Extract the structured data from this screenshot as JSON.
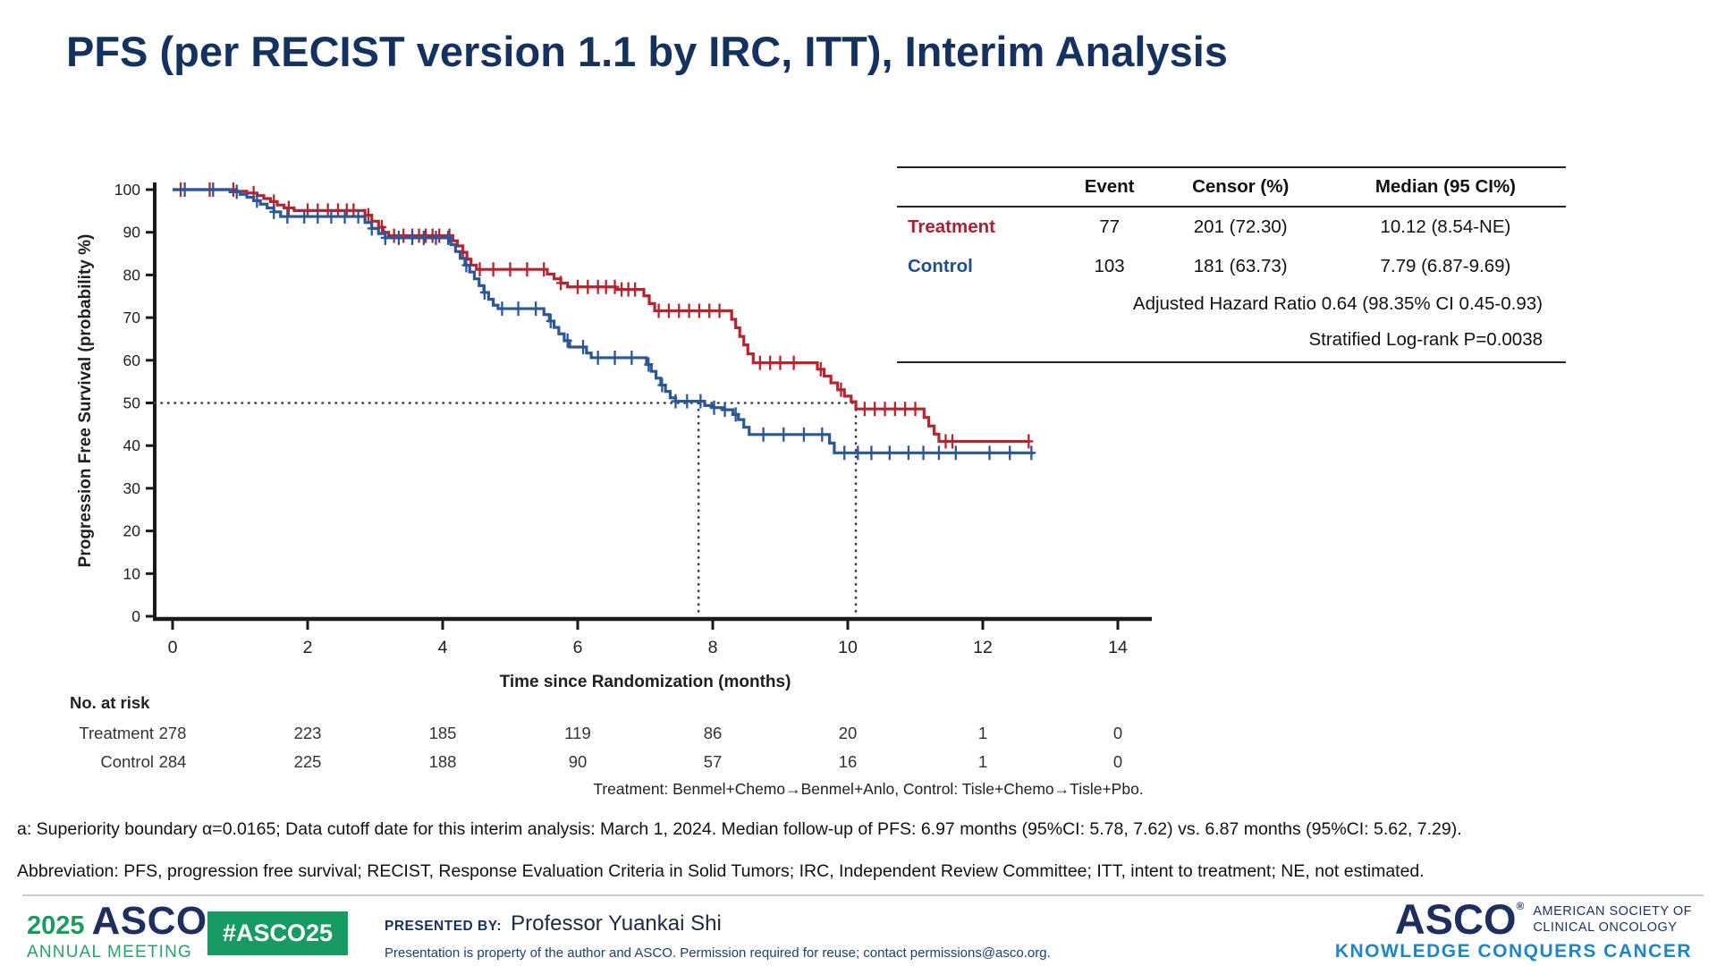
{
  "title": "PFS (per RECIST version 1.1 by IRC, ITT), Interim Analysis",
  "stats_table": {
    "columns": [
      "",
      "Event",
      "Censor (%)",
      "Median (95 CI%)"
    ],
    "rows": [
      {
        "label": "Treatment",
        "event": "77",
        "censor": "201 (72.30)",
        "median": "10.12 (8.54-NE)"
      },
      {
        "label": "Control",
        "event": "103",
        "censor": "181 (63.73)",
        "median": "7.79 (6.87-9.69)"
      }
    ],
    "hr_note": "Adjusted Hazard Ratio 0.64 (98.35% CI 0.45-0.93)",
    "logrank_note": "Stratified Log-rank P=0.0038"
  },
  "chart_data": {
    "type": "line",
    "subtype": "kaplan-meier-step",
    "xlabel": "Time since Randomization (months)",
    "ylabel": "Progression Free Survival (probability %)",
    "xlim": [
      0,
      14
    ],
    "ylim": [
      0,
      100
    ],
    "xticks": [
      0,
      2,
      4,
      6,
      8,
      10,
      12,
      14
    ],
    "yticks": [
      0,
      10,
      20,
      30,
      40,
      50,
      60,
      70,
      80,
      90,
      100
    ],
    "grid": false,
    "legend_position": "none",
    "reference_lines": {
      "horizontal_y": 50,
      "vertical_x": [
        7.79,
        10.12
      ]
    },
    "series": [
      {
        "name": "Treatment",
        "color": "#B5252F",
        "steps": [
          [
            0,
            100
          ],
          [
            0.85,
            100
          ],
          [
            0.95,
            99.6
          ],
          [
            1.1,
            99.2
          ],
          [
            1.25,
            98.6
          ],
          [
            1.35,
            97.9
          ],
          [
            1.45,
            97.2
          ],
          [
            1.55,
            96.4
          ],
          [
            1.65,
            95.7
          ],
          [
            1.8,
            95.1
          ],
          [
            2.75,
            95.1
          ],
          [
            2.85,
            94
          ],
          [
            2.95,
            92.6
          ],
          [
            3.05,
            91.2
          ],
          [
            3.12,
            90
          ],
          [
            3.2,
            89.2
          ],
          [
            4.05,
            89.2
          ],
          [
            4.15,
            88
          ],
          [
            4.22,
            86.8
          ],
          [
            4.3,
            85.3
          ],
          [
            4.36,
            83.7
          ],
          [
            4.42,
            82.3
          ],
          [
            4.5,
            81.3
          ],
          [
            5.45,
            81.3
          ],
          [
            5.55,
            80.2
          ],
          [
            5.65,
            79.1
          ],
          [
            5.75,
            78.1
          ],
          [
            5.85,
            77.2
          ],
          [
            6.5,
            77.2
          ],
          [
            6.56,
            76.6
          ],
          [
            6.9,
            76.6
          ],
          [
            6.98,
            75.1
          ],
          [
            7.06,
            73.3
          ],
          [
            7.14,
            71.6
          ],
          [
            8.2,
            71.6
          ],
          [
            8.28,
            69.6
          ],
          [
            8.34,
            67.6
          ],
          [
            8.4,
            65.6
          ],
          [
            8.46,
            63.6
          ],
          [
            8.52,
            61.5
          ],
          [
            8.6,
            59.4
          ],
          [
            9.45,
            59.4
          ],
          [
            9.55,
            57.9
          ],
          [
            9.65,
            56.3
          ],
          [
            9.75,
            54.7
          ],
          [
            9.85,
            53.1
          ],
          [
            9.95,
            51.6
          ],
          [
            10.05,
            50.3
          ],
          [
            10.12,
            48.6
          ],
          [
            11.05,
            48.6
          ],
          [
            11.13,
            46.6
          ],
          [
            11.2,
            44.6
          ],
          [
            11.28,
            42.7
          ],
          [
            11.35,
            41
          ],
          [
            12.7,
            41
          ]
        ],
        "censors": [
          0.12,
          0.55,
          0.9,
          1.2,
          1.5,
          1.72,
          2.0,
          2.15,
          2.3,
          2.45,
          2.58,
          2.68,
          2.9,
          3.1,
          3.28,
          3.42,
          3.55,
          3.65,
          3.75,
          3.85,
          3.95,
          4.1,
          4.3,
          4.55,
          4.75,
          5.0,
          5.25,
          5.5,
          5.75,
          6.0,
          6.15,
          6.3,
          6.42,
          6.55,
          6.65,
          6.75,
          6.85,
          7.2,
          7.35,
          7.5,
          7.65,
          7.8,
          7.95,
          8.1,
          8.7,
          8.85,
          9.0,
          9.2,
          9.6,
          9.9,
          10.25,
          10.4,
          10.55,
          10.7,
          10.85,
          11.0,
          11.45,
          11.55,
          12.68
        ]
      },
      {
        "name": "Control",
        "color": "#2B5796",
        "steps": [
          [
            0,
            100
          ],
          [
            0.7,
            100
          ],
          [
            0.85,
            99.5
          ],
          [
            1.0,
            98.9
          ],
          [
            1.1,
            98.2
          ],
          [
            1.2,
            97.4
          ],
          [
            1.3,
            96.6
          ],
          [
            1.4,
            95.7
          ],
          [
            1.5,
            94.8
          ],
          [
            1.6,
            93.7
          ],
          [
            2.75,
            93.7
          ],
          [
            2.85,
            92.3
          ],
          [
            2.95,
            90.9
          ],
          [
            3.05,
            89.7
          ],
          [
            3.15,
            88.7
          ],
          [
            4.05,
            88.7
          ],
          [
            4.12,
            87.1
          ],
          [
            4.19,
            85.5
          ],
          [
            4.26,
            83.9
          ],
          [
            4.33,
            82.3
          ],
          [
            4.4,
            80.7
          ],
          [
            4.47,
            79.1
          ],
          [
            4.54,
            77.5
          ],
          [
            4.61,
            75.9
          ],
          [
            4.68,
            74.3
          ],
          [
            4.75,
            72.9
          ],
          [
            4.82,
            72.1
          ],
          [
            5.42,
            72.1
          ],
          [
            5.5,
            70.7
          ],
          [
            5.58,
            69.2
          ],
          [
            5.65,
            67.7
          ],
          [
            5.72,
            66.2
          ],
          [
            5.8,
            64.6
          ],
          [
            5.88,
            63.1
          ],
          [
            6.05,
            63.1
          ],
          [
            6.13,
            61.7
          ],
          [
            6.2,
            60.6
          ],
          [
            6.95,
            60.6
          ],
          [
            7.02,
            59
          ],
          [
            7.09,
            57.4
          ],
          [
            7.16,
            55.8
          ],
          [
            7.23,
            54.2
          ],
          [
            7.3,
            52.7
          ],
          [
            7.37,
            51.2
          ],
          [
            7.45,
            50.4
          ],
          [
            7.79,
            50.4
          ],
          [
            7.88,
            49.4
          ],
          [
            8.0,
            48.9
          ],
          [
            8.15,
            48.4
          ],
          [
            8.3,
            47.3
          ],
          [
            8.38,
            46.1
          ],
          [
            8.46,
            44.3
          ],
          [
            8.54,
            42.6
          ],
          [
            9.65,
            42.6
          ],
          [
            9.73,
            40.6
          ],
          [
            9.8,
            38.3
          ],
          [
            12.75,
            38.3
          ]
        ],
        "censors": [
          0.18,
          0.6,
          0.95,
          1.25,
          1.5,
          1.7,
          1.95,
          2.15,
          2.35,
          2.55,
          2.75,
          2.95,
          3.15,
          3.35,
          3.55,
          3.72,
          3.9,
          4.08,
          4.35,
          4.62,
          4.88,
          5.12,
          5.38,
          5.6,
          5.85,
          6.08,
          6.3,
          6.55,
          6.8,
          7.05,
          7.25,
          7.45,
          7.62,
          7.82,
          8.02,
          8.18,
          8.34,
          8.75,
          9.05,
          9.35,
          9.62,
          9.95,
          10.15,
          10.35,
          10.62,
          10.9,
          11.12,
          11.35,
          11.6,
          12.1,
          12.4,
          12.72
        ]
      }
    ],
    "risk_table": {
      "title": "No. at risk",
      "timepoints": [
        0,
        2,
        4,
        6,
        8,
        10,
        12,
        14
      ],
      "rows": [
        {
          "label": "Treatment",
          "values": [
            278,
            223,
            185,
            119,
            86,
            20,
            1,
            0
          ]
        },
        {
          "label": "Control",
          "values": [
            284,
            225,
            188,
            90,
            57,
            16,
            1,
            0
          ]
        }
      ]
    },
    "caption": "Treatment: Benmel+Chemo→Benmel+Anlo, Control: Tisle+Chemo→Tisle+Pbo."
  },
  "footnotes": {
    "line_a": "a: Superiority boundary α=0.0165; Data cutoff date for this interim analysis: March 1, 2024. Median follow-up of PFS: 6.97 months (95%CI: 5.78, 7.62) vs. 6.87 months  (95%CI: 5.62, 7.29).",
    "abbreviations": "Abbreviation: PFS, progression free survival; RECIST, Response Evaluation Criteria in Solid Tumors; IRC, Independent Review Committee; ITT, intent to treatment; NE, not estimated."
  },
  "footer": {
    "meeting_year": "2025",
    "meeting_org": "ASCO",
    "meeting_reg": "®",
    "meeting_name": "ANNUAL MEETING",
    "hashtag": "#ASCO25",
    "presented_by_label": "PRESENTED BY:",
    "presenter": "Professor Yuankai Shi",
    "property_note": "Presentation is property of the author and ASCO. Permission required for reuse; contact permissions@asco.org.",
    "org_wordmark": "ASCO",
    "org_reg": "®",
    "org_name_line1": "AMERICAN SOCIETY OF",
    "org_name_line2": "CLINICAL ONCOLOGY",
    "org_tagline": "KNOWLEDGE CONQUERS CANCER"
  },
  "colors": {
    "title_navy": "#14315F",
    "treatment_red": "#B5252F",
    "control_blue": "#2B5796",
    "asco_green": "#179B62",
    "asco_navy": "#1E2F5F",
    "tagline_blue": "#1C86C8",
    "dotted_line": "#39414F"
  }
}
